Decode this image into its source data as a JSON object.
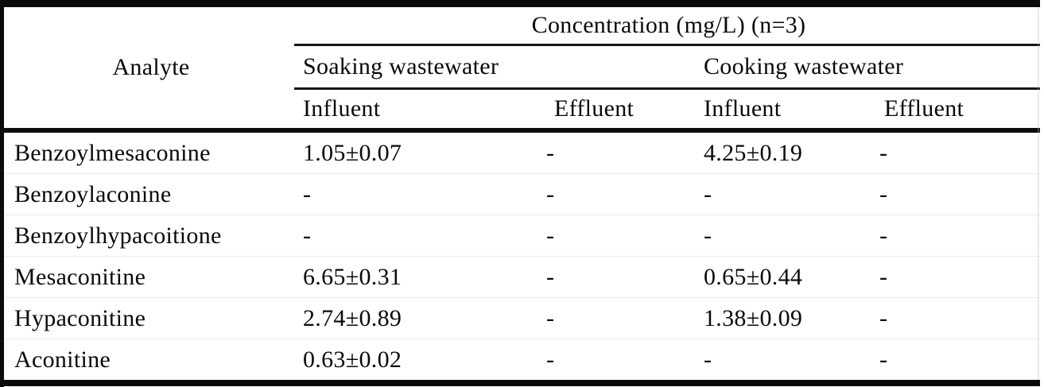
{
  "table": {
    "title": "Concentration (mg/L) (n=3)",
    "analyte_header": "Analyte",
    "group_headers": [
      "Soaking wastewater",
      "Cooking wastewater"
    ],
    "sub_headers": [
      "Influent",
      "Effluent",
      "Influent",
      "Effluent"
    ],
    "rows": [
      {
        "analyte": "Benzoylmesaconine",
        "values": [
          "1.05±0.07",
          "-",
          "4.25±0.19",
          "-"
        ]
      },
      {
        "analyte": "Benzoylaconine",
        "values": [
          "-",
          "-",
          "-",
          "-"
        ]
      },
      {
        "analyte": "Benzoylhypacoitione",
        "values": [
          "-",
          "-",
          "-",
          "-"
        ]
      },
      {
        "analyte": "Mesaconitine",
        "values": [
          "6.65±0.31",
          "-",
          "0.65±0.44",
          "-"
        ]
      },
      {
        "analyte": "Hypaconitine",
        "values": [
          "2.74±0.89",
          "-",
          "1.38±0.09",
          "-"
        ]
      },
      {
        "analyte": "Aconitine",
        "values": [
          "0.63±0.02",
          "-",
          "-",
          "-"
        ]
      }
    ]
  },
  "chart_data": {
    "type": "table",
    "title": "Concentration (mg/L) (n=3)",
    "columns": [
      "Analyte",
      "Soaking wastewater Influent",
      "Soaking wastewater Effluent",
      "Cooking wastewater Influent",
      "Cooking wastewater Effluent"
    ],
    "rows": [
      [
        "Benzoylmesaconine",
        "1.05±0.07",
        "-",
        "4.25±0.19",
        "-"
      ],
      [
        "Benzoylaconine",
        "-",
        "-",
        "-",
        "-"
      ],
      [
        "Benzoylhypacoitione",
        "-",
        "-",
        "-",
        "-"
      ],
      [
        "Mesaconitine",
        "6.65±0.31",
        "-",
        "0.65±0.44",
        "-"
      ],
      [
        "Hypaconitine",
        "2.74±0.89",
        "-",
        "1.38±0.09",
        "-"
      ],
      [
        "Aconitine",
        "0.63±0.02",
        "-",
        "-",
        "-"
      ]
    ]
  },
  "colors": {
    "background": "#ffffff",
    "text": "#0a0a0a",
    "rule": "#0d0d0d"
  }
}
